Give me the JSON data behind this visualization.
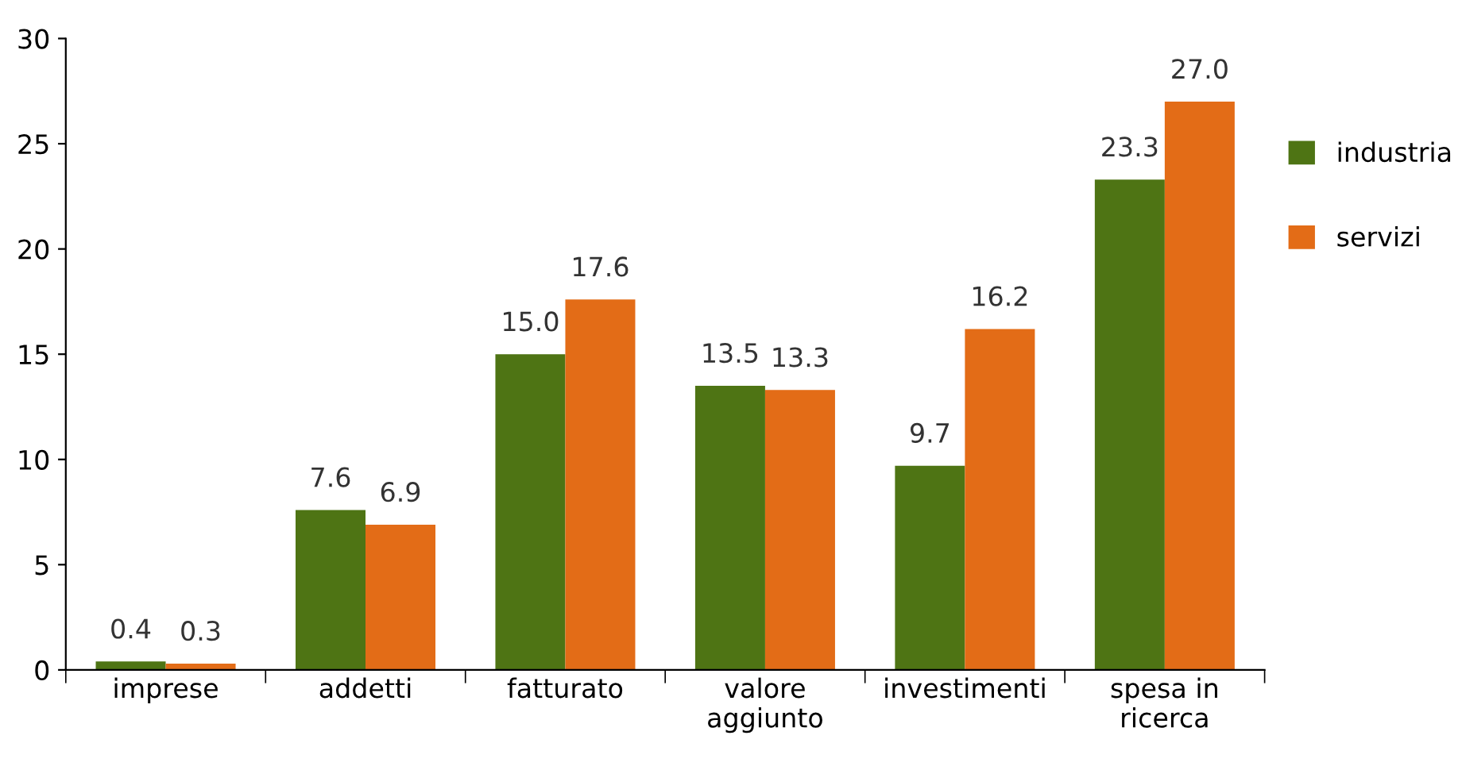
{
  "chart_data": {
    "type": "bar",
    "categories": [
      "imprese",
      "addetti",
      "fatturato",
      "valore\naggiunto",
      "investimenti",
      "spesa in\nricerca"
    ],
    "series": [
      {
        "name": "industria",
        "color": "#4e7414",
        "values": [
          0.4,
          7.6,
          15,
          13.5,
          9.7,
          23.3
        ],
        "value_labels": [
          "0.4",
          "7.6",
          "15.0",
          "13.5",
          "9.7",
          "23.3"
        ]
      },
      {
        "name": "servizi",
        "color": "#e36c17",
        "values": [
          0.3,
          6.9,
          17.6,
          13.3,
          16.2,
          27
        ],
        "value_labels": [
          "0.3",
          "6.9",
          "17.6",
          "13.3",
          "16.2",
          "27.0"
        ]
      }
    ],
    "ylim": [
      0,
      30
    ],
    "yticks": [
      0,
      5,
      10,
      15,
      20,
      25,
      30
    ],
    "grid": false,
    "legend": "right"
  }
}
